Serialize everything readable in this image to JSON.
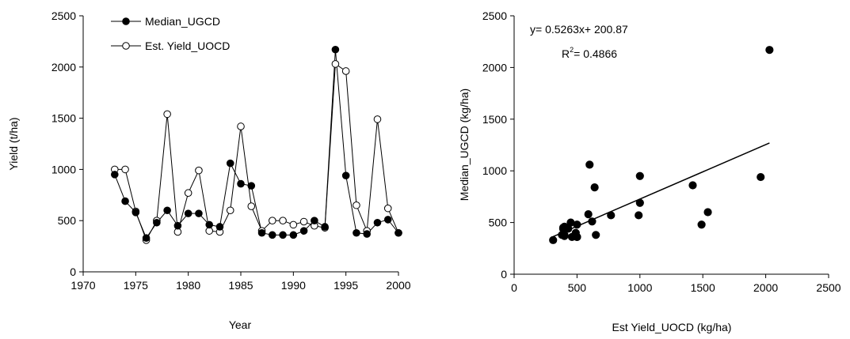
{
  "chart_data": [
    {
      "type": "line",
      "title": "",
      "xlabel": "Year",
      "ylabel": "Yield (t/ha)",
      "xlim": [
        1970,
        2000
      ],
      "ylim": [
        0,
        2500
      ],
      "xticks": [
        1970,
        1975,
        1980,
        1985,
        1990,
        1995,
        2000
      ],
      "yticks": [
        0,
        500,
        1000,
        1500,
        2000,
        2500
      ],
      "grid": false,
      "legend": "top-left",
      "series": [
        {
          "name": "Median_UGCD",
          "marker": "filled-circle",
          "x": [
            1973,
            1974,
            1975,
            1976,
            1977,
            1978,
            1979,
            1980,
            1981,
            1982,
            1983,
            1984,
            1985,
            1986,
            1987,
            1988,
            1989,
            1990,
            1991,
            1992,
            1993,
            1994,
            1995,
            1996,
            1997,
            1998,
            1999,
            2000
          ],
          "y": [
            950,
            690,
            580,
            330,
            480,
            600,
            450,
            570,
            570,
            460,
            440,
            1060,
            860,
            840,
            380,
            360,
            360,
            360,
            400,
            500,
            440,
            2170,
            940,
            380,
            370,
            480,
            510,
            380
          ]
        },
        {
          "name": "Est. Yield_UOCD",
          "marker": "open-circle",
          "x": [
            1973,
            1974,
            1975,
            1976,
            1977,
            1978,
            1979,
            1980,
            1981,
            1982,
            1983,
            1984,
            1985,
            1986,
            1987,
            1988,
            1989,
            1990,
            1991,
            1992,
            1993,
            1994,
            1995,
            1996,
            1997,
            1998,
            1999,
            2000
          ],
          "y": [
            1000,
            1000,
            590,
            310,
            500,
            1540,
            390,
            770,
            990,
            400,
            390,
            600,
            1420,
            640,
            400,
            500,
            500,
            460,
            490,
            450,
            430,
            2030,
            1960,
            650,
            400,
            1490,
            620,
            380
          ]
        }
      ]
    },
    {
      "type": "scatter",
      "title": "",
      "xlabel": "Est Yield_UOCD (kg/ha)",
      "ylabel": "Median_UGCD (kg/ha)",
      "xlim": [
        0,
        2500
      ],
      "ylim": [
        0,
        2500
      ],
      "xticks": [
        0,
        500,
        1000,
        1500,
        2000,
        2500
      ],
      "yticks": [
        0,
        500,
        1000,
        1500,
        2000,
        2500
      ],
      "grid": false,
      "equation": "y= 0.5263x+ 200.87",
      "r2_prefix": "R",
      "r2_sup": "2",
      "r2_value": "= 0.4866",
      "trendline": {
        "slope": 0.5263,
        "intercept": 200.87,
        "x_range": [
          310,
          2030
        ]
      },
      "x": [
        1000,
        1000,
        590,
        310,
        500,
        1540,
        390,
        770,
        990,
        400,
        390,
        600,
        1420,
        640,
        400,
        500,
        500,
        460,
        490,
        450,
        430,
        2030,
        1960,
        650,
        400,
        1490,
        620,
        380
      ],
      "y": [
        950,
        690,
        580,
        330,
        480,
        600,
        450,
        570,
        570,
        460,
        440,
        1060,
        860,
        840,
        380,
        360,
        360,
        360,
        400,
        500,
        440,
        2170,
        940,
        380,
        370,
        480,
        510,
        380
      ]
    }
  ]
}
